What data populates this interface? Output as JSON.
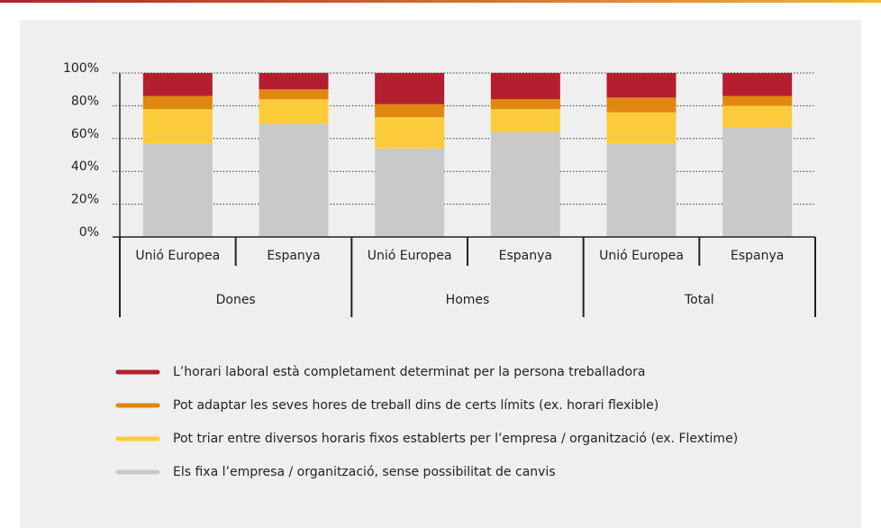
{
  "chart_data": {
    "type": "stacked_bar",
    "categories": [
      "Unió Europea",
      "Espanya",
      "Unió Europea",
      "Espanya",
      "Unió Europea",
      "Espanya"
    ],
    "groups": [
      "Dones",
      "Homes",
      "Total"
    ],
    "series": [
      {
        "name": "Els fixa l’empresa / organització, sense possibilitat de canvis",
        "color": "#c9c9c9",
        "values": [
          57,
          69,
          54,
          64,
          57,
          67
        ]
      },
      {
        "name": "Pot triar entre diversos horaris fixos establerts per l’empresa / organització (ex. Flextime)",
        "color": "#fccb3c",
        "values": [
          21,
          15,
          19,
          14,
          19,
          13
        ]
      },
      {
        "name": "Pot adaptar les seves hores de treball dins de certs límits (ex. horari flexible)",
        "color": "#e0870f",
        "values": [
          8,
          6,
          8,
          6,
          9,
          6
        ]
      },
      {
        "name": "L’horari laboral està completament determinat per la persona treballadora",
        "color": "#b31f2f",
        "values": [
          14,
          10,
          19,
          16,
          15,
          14
        ]
      }
    ],
    "legend_order": [
      3,
      2,
      1,
      0
    ],
    "ylim": [
      0,
      100
    ],
    "yticks": [
      {
        "value": 0,
        "label": "0%"
      },
      {
        "value": 20,
        "label": "20%"
      },
      {
        "value": 40,
        "label": "40%"
      },
      {
        "value": 60,
        "label": "60%"
      },
      {
        "value": 80,
        "label": "80%"
      },
      {
        "value": 100,
        "label": "100%"
      }
    ],
    "grid": true
  }
}
